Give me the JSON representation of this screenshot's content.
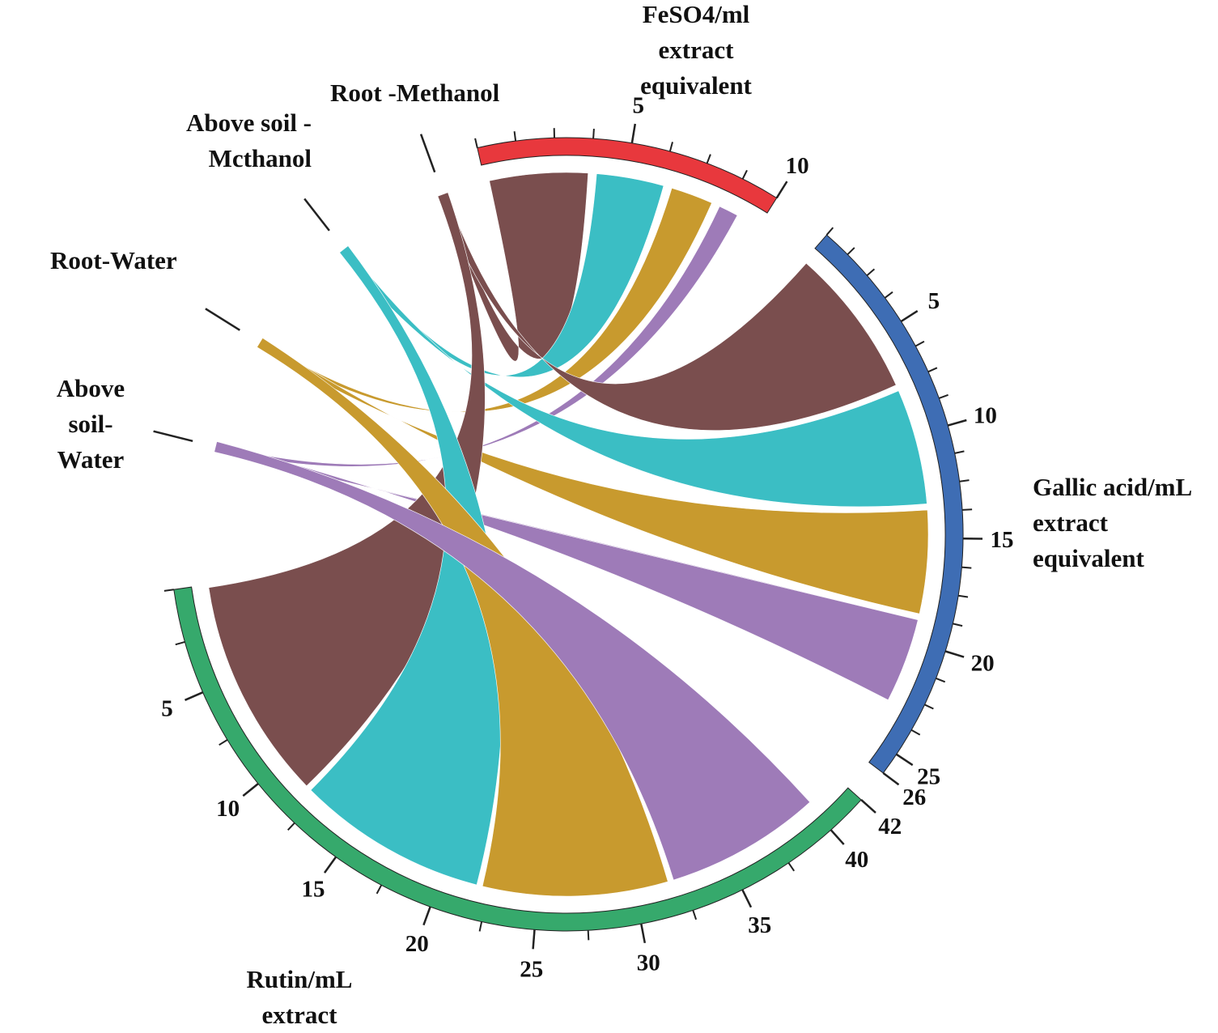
{
  "chart_data": {
    "type": "chord",
    "sources": [
      {
        "name": "Root -Methanol",
        "color": "#7a4e4e"
      },
      {
        "name": "Above soil -Mcthanol",
        "color": "#3bbec4"
      },
      {
        "name": "Root-Water",
        "color": "#c89a2e"
      },
      {
        "name": "Above soil-Water",
        "color": "#9e7bb8"
      }
    ],
    "targets": [
      {
        "name": "FeSO4/ml extract equivalent",
        "label_lines": [
          "FeSO4/ml",
          "extract",
          "equivalent"
        ],
        "color": "#e8383d",
        "axis_max": 10,
        "ticks": [
          5,
          10
        ],
        "values": {
          "Root -Methanol": 3.8,
          "Above soil -Mcthanol": 2.7,
          "Root-Water": 1.8,
          "Above soil-Water": 1.0
        }
      },
      {
        "name": "Gallic acid/mL extract equivalent",
        "label_lines": [
          "Gallic acid/mL",
          "extract",
          "equivalent"
        ],
        "color": "#3e6db4",
        "axis_max": 26,
        "ticks": [
          5,
          10,
          15,
          20,
          25,
          26
        ],
        "values": {
          "Root -Methanol": 7.6,
          "Above soil -Mcthanol": 5.9,
          "Root-Water": 5.3,
          "Above soil-Water": 4.4
        }
      },
      {
        "name": "Rutin/mL extract",
        "label_lines": [
          "Rutin/mL",
          "extract"
        ],
        "color": "#36a96c",
        "axis_max": 42,
        "ticks": [
          5,
          10,
          15,
          20,
          25,
          30,
          35,
          40,
          42
        ],
        "values": {
          "Root -Methanol": 11.8,
          "Above soil -Mcthanol": 10.2,
          "Root-Water": 9.9,
          "Above soil-Water": 8.4
        }
      }
    ]
  }
}
